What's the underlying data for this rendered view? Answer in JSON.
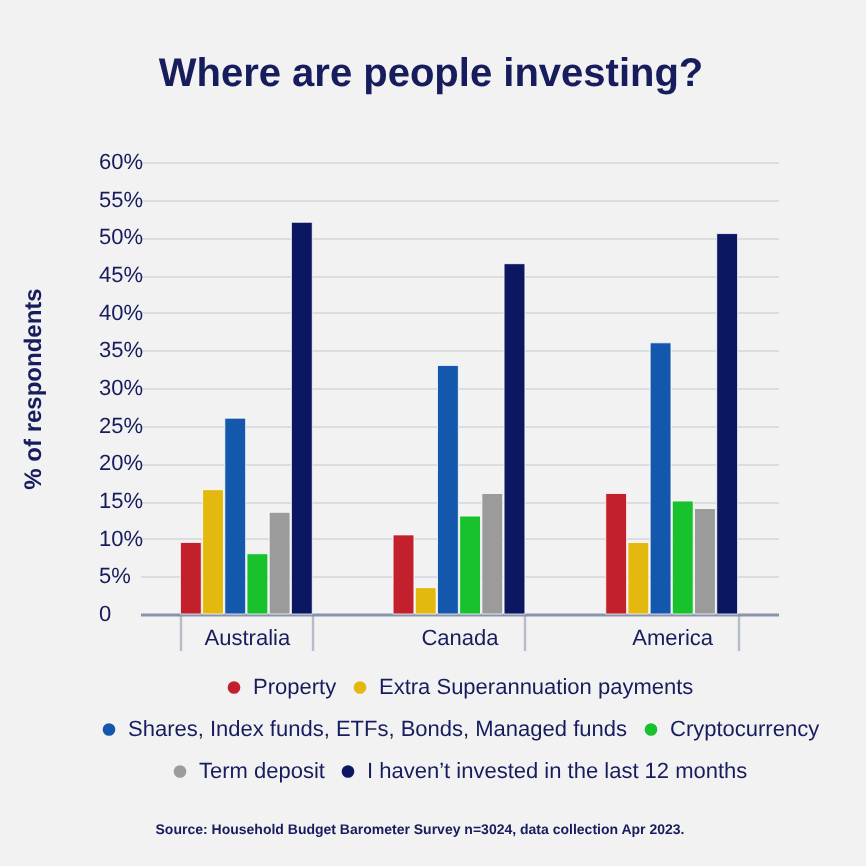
{
  "chart_data": {
    "type": "bar",
    "title": "Where are people investing?",
    "ylabel": "% of respondents",
    "categories": [
      "Australia",
      "Canada",
      "America"
    ],
    "series": [
      {
        "name": "Property",
        "color": "#c1202c",
        "values": [
          9.5,
          10.5,
          16
        ]
      },
      {
        "name": "Extra Superannuation payments",
        "color": "#e3b90f",
        "values": [
          16.5,
          3.5,
          9.5
        ]
      },
      {
        "name": "Shares, Index funds, ETFs, Bonds, Managed funds",
        "color": "#1458ad",
        "values": [
          26,
          33,
          36
        ]
      },
      {
        "name": "Cryptocurrency",
        "color": "#17c22c",
        "values": [
          8,
          13,
          15
        ]
      },
      {
        "name": "Term deposit",
        "color": "#9b9b9b",
        "values": [
          13.5,
          16,
          14
        ]
      },
      {
        "name": "I haven’t invested in the last 12 months",
        "color": "#0c1762",
        "values": [
          52,
          46.5,
          50.5
        ]
      }
    ],
    "ylim": [
      0,
      60
    ],
    "yticks": [
      0,
      {
        "value": 5,
        "label": "5%"
      },
      {
        "value": 10,
        "label": "10%"
      },
      {
        "value": 15,
        "label": "15%"
      },
      {
        "value": 20,
        "label": "20%"
      },
      {
        "value": 25,
        "label": "25%"
      },
      {
        "value": 30,
        "label": "30%"
      },
      {
        "value": 35,
        "label": "35%"
      },
      {
        "value": 40,
        "label": "40%"
      },
      {
        "value": 45,
        "label": "45%"
      },
      {
        "value": 50,
        "label": "50%"
      },
      {
        "value": 55,
        "label": "55%"
      },
      {
        "value": 60,
        "label": "60%"
      }
    ],
    "grid": "y",
    "legend": "bottom",
    "annotations": [
      "Source: Household Budget Barometer Survey n=3024, data collection Apr 2023."
    ]
  }
}
